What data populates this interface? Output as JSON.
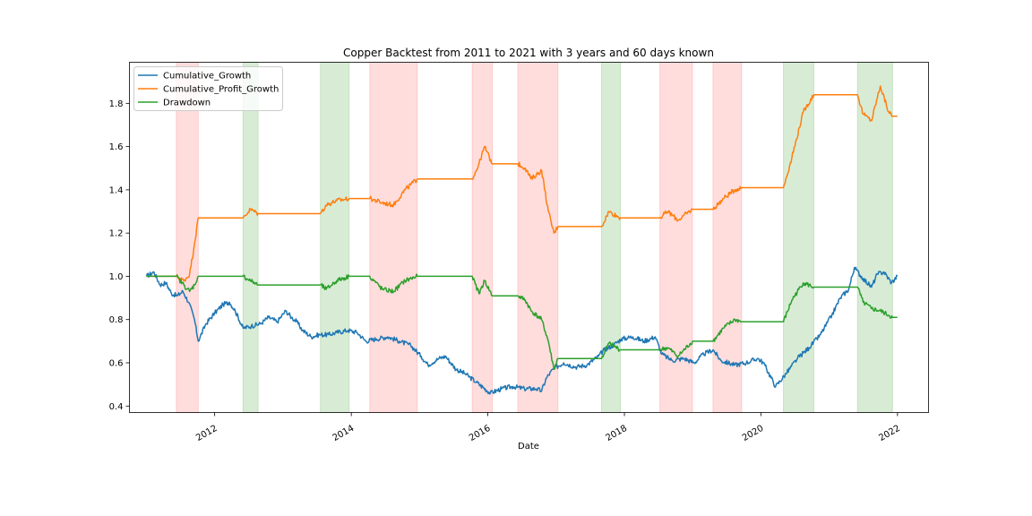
{
  "chart_data": {
    "type": "line",
    "title": "Copper Backtest from 2011 to 2021 with 3 years and 60 days known",
    "xlabel": "Date",
    "ylabel": "",
    "xlim": [
      "2010-10-02",
      "2022-06-16"
    ],
    "ylim": [
      0.37,
      1.99
    ],
    "grid": false,
    "legend_position": "top-left",
    "x_ticks": [
      "2012",
      "2014",
      "2016",
      "2018",
      "2020",
      "2022"
    ],
    "y_ticks": [
      0.4,
      0.6,
      0.8,
      1.0,
      1.2,
      1.4,
      1.6,
      1.8
    ],
    "shaded_regions": [
      {
        "start": "2011-06-10",
        "end": "2011-10-05",
        "color": "#ffb3b3"
      },
      {
        "start": "2012-06-01",
        "end": "2012-08-20",
        "color": "#a8d5a2"
      },
      {
        "start": "2013-07-20",
        "end": "2013-12-20",
        "color": "#a8d5a2"
      },
      {
        "start": "2014-04-10",
        "end": "2014-12-20",
        "color": "#ffb3b3"
      },
      {
        "start": "2015-10-10",
        "end": "2016-01-25",
        "color": "#ffb3b3"
      },
      {
        "start": "2016-06-10",
        "end": "2017-01-10",
        "color": "#ffb3b3"
      },
      {
        "start": "2017-09-01",
        "end": "2017-12-10",
        "color": "#a8d5a2"
      },
      {
        "start": "2018-07-10",
        "end": "2018-12-31",
        "color": "#ffb3b3"
      },
      {
        "start": "2019-04-20",
        "end": "2019-09-20",
        "color": "#ffb3b3"
      },
      {
        "start": "2020-05-01",
        "end": "2020-10-10",
        "color": "#a8d5a2"
      },
      {
        "start": "2021-06-01",
        "end": "2021-12-05",
        "color": "#a8d5a2"
      }
    ],
    "series": [
      {
        "name": "Cumulative_Growth",
        "color": "#1f77b4",
        "points": [
          [
            "2011-01-01",
            1.0
          ],
          [
            "2011-02-10",
            1.02
          ],
          [
            "2011-03-15",
            0.96
          ],
          [
            "2011-04-15",
            0.97
          ],
          [
            "2011-05-15",
            0.92
          ],
          [
            "2011-06-15",
            0.91
          ],
          [
            "2011-07-15",
            0.93
          ],
          [
            "2011-08-15",
            0.88
          ],
          [
            "2011-09-15",
            0.8
          ],
          [
            "2011-10-05",
            0.7
          ],
          [
            "2011-11-15",
            0.78
          ],
          [
            "2012-01-01",
            0.83
          ],
          [
            "2012-02-15",
            0.87
          ],
          [
            "2012-03-20",
            0.88
          ],
          [
            "2012-04-20",
            0.84
          ],
          [
            "2012-06-01",
            0.76
          ],
          [
            "2012-07-15",
            0.77
          ],
          [
            "2012-09-01",
            0.78
          ],
          [
            "2012-10-15",
            0.81
          ],
          [
            "2012-12-01",
            0.79
          ],
          [
            "2013-01-15",
            0.84
          ],
          [
            "2013-02-15",
            0.81
          ],
          [
            "2013-03-15",
            0.79
          ],
          [
            "2013-04-15",
            0.75
          ],
          [
            "2013-06-01",
            0.72
          ],
          [
            "2013-07-15",
            0.73
          ],
          [
            "2013-09-01",
            0.73
          ],
          [
            "2013-10-15",
            0.74
          ],
          [
            "2013-12-15",
            0.75
          ],
          [
            "2014-02-01",
            0.74
          ],
          [
            "2014-03-20",
            0.7
          ],
          [
            "2014-05-15",
            0.71
          ],
          [
            "2014-07-15",
            0.72
          ],
          [
            "2014-09-15",
            0.7
          ],
          [
            "2014-11-15",
            0.68
          ],
          [
            "2015-01-10",
            0.63
          ],
          [
            "2015-02-15",
            0.59
          ],
          [
            "2015-04-15",
            0.62
          ],
          [
            "2015-05-20",
            0.63
          ],
          [
            "2015-07-15",
            0.57
          ],
          [
            "2015-09-01",
            0.55
          ],
          [
            "2015-11-01",
            0.51
          ],
          [
            "2016-01-15",
            0.46
          ],
          [
            "2016-03-15",
            0.48
          ],
          [
            "2016-05-15",
            0.49
          ],
          [
            "2016-07-15",
            0.48
          ],
          [
            "2016-09-15",
            0.48
          ],
          [
            "2016-10-15",
            0.47
          ],
          [
            "2016-11-10",
            0.53
          ],
          [
            "2016-12-15",
            0.57
          ],
          [
            "2017-02-10",
            0.6
          ],
          [
            "2017-04-15",
            0.58
          ],
          [
            "2017-06-15",
            0.59
          ],
          [
            "2017-08-15",
            0.63
          ],
          [
            "2017-09-15",
            0.66
          ],
          [
            "2017-11-01",
            0.68
          ],
          [
            "2017-12-15",
            0.71
          ],
          [
            "2018-02-15",
            0.72
          ],
          [
            "2018-04-15",
            0.7
          ],
          [
            "2018-06-15",
            0.72
          ],
          [
            "2018-07-20",
            0.64
          ],
          [
            "2018-09-15",
            0.61
          ],
          [
            "2018-11-15",
            0.62
          ],
          [
            "2019-01-10",
            0.6
          ],
          [
            "2019-03-01",
            0.64
          ],
          [
            "2019-04-20",
            0.66
          ],
          [
            "2019-06-01",
            0.61
          ],
          [
            "2019-08-15",
            0.59
          ],
          [
            "2019-10-15",
            0.6
          ],
          [
            "2019-12-15",
            0.62
          ],
          [
            "2020-01-15",
            0.6
          ],
          [
            "2020-03-20",
            0.49
          ],
          [
            "2020-05-15",
            0.55
          ],
          [
            "2020-07-15",
            0.62
          ],
          [
            "2020-09-15",
            0.67
          ],
          [
            "2020-11-15",
            0.73
          ],
          [
            "2021-01-15",
            0.82
          ],
          [
            "2021-03-01",
            0.9
          ],
          [
            "2021-04-15",
            0.94
          ],
          [
            "2021-05-15",
            1.04
          ],
          [
            "2021-06-30",
            0.99
          ],
          [
            "2021-08-15",
            0.95
          ],
          [
            "2021-09-15",
            1.01
          ],
          [
            "2021-10-20",
            1.02
          ],
          [
            "2021-11-30",
            0.97
          ],
          [
            "2021-12-31",
            1.0
          ]
        ]
      },
      {
        "name": "Cumulative_Profit_Growth",
        "color": "#ff7f0e",
        "points": [
          [
            "2011-01-01",
            1.0
          ],
          [
            "2011-06-10",
            1.0
          ],
          [
            "2011-07-20",
            0.98
          ],
          [
            "2011-08-20",
            1.01
          ],
          [
            "2011-09-15",
            1.15
          ],
          [
            "2011-10-05",
            1.27
          ],
          [
            "2012-06-01",
            1.27
          ],
          [
            "2012-07-10",
            1.31
          ],
          [
            "2012-08-20",
            1.29
          ],
          [
            "2013-07-20",
            1.29
          ],
          [
            "2013-08-20",
            1.33
          ],
          [
            "2013-10-15",
            1.35
          ],
          [
            "2013-12-20",
            1.36
          ],
          [
            "2014-04-10",
            1.36
          ],
          [
            "2014-06-15",
            1.34
          ],
          [
            "2014-08-15",
            1.33
          ],
          [
            "2014-10-15",
            1.4
          ],
          [
            "2014-12-20",
            1.45
          ],
          [
            "2015-10-10",
            1.45
          ],
          [
            "2015-11-15",
            1.52
          ],
          [
            "2015-12-15",
            1.6
          ],
          [
            "2016-01-25",
            1.52
          ],
          [
            "2016-06-10",
            1.52
          ],
          [
            "2016-07-20",
            1.5
          ],
          [
            "2016-08-20",
            1.45
          ],
          [
            "2016-10-15",
            1.49
          ],
          [
            "2016-11-20",
            1.3
          ],
          [
            "2016-12-20",
            1.2
          ],
          [
            "2017-01-10",
            1.23
          ],
          [
            "2017-09-01",
            1.23
          ],
          [
            "2017-10-10",
            1.3
          ],
          [
            "2017-12-10",
            1.27
          ],
          [
            "2018-07-10",
            1.27
          ],
          [
            "2018-08-20",
            1.3
          ],
          [
            "2018-10-15",
            1.26
          ],
          [
            "2018-12-31",
            1.31
          ],
          [
            "2019-04-20",
            1.31
          ],
          [
            "2019-06-15",
            1.36
          ],
          [
            "2019-08-15",
            1.4
          ],
          [
            "2019-09-20",
            1.41
          ],
          [
            "2020-05-01",
            1.41
          ],
          [
            "2020-06-15",
            1.55
          ],
          [
            "2020-08-15",
            1.76
          ],
          [
            "2020-10-10",
            1.84
          ],
          [
            "2021-06-01",
            1.84
          ],
          [
            "2021-07-01",
            1.75
          ],
          [
            "2021-08-15",
            1.72
          ],
          [
            "2021-10-01",
            1.88
          ],
          [
            "2021-11-15",
            1.76
          ],
          [
            "2021-12-05",
            1.74
          ],
          [
            "2021-12-31",
            1.74
          ]
        ]
      },
      {
        "name": "Drawdown",
        "color": "#2ca02c",
        "points": [
          [
            "2011-01-01",
            1.0
          ],
          [
            "2011-06-10",
            1.0
          ],
          [
            "2011-07-20",
            0.96
          ],
          [
            "2011-08-20",
            0.93
          ],
          [
            "2011-09-15",
            0.96
          ],
          [
            "2011-10-05",
            1.0
          ],
          [
            "2012-06-01",
            1.0
          ],
          [
            "2012-07-10",
            0.98
          ],
          [
            "2012-08-20",
            0.96
          ],
          [
            "2013-07-20",
            0.96
          ],
          [
            "2013-08-20",
            0.94
          ],
          [
            "2013-10-15",
            0.98
          ],
          [
            "2013-12-20",
            1.0
          ],
          [
            "2014-04-10",
            1.0
          ],
          [
            "2014-06-15",
            0.94
          ],
          [
            "2014-08-15",
            0.93
          ],
          [
            "2014-10-15",
            0.98
          ],
          [
            "2014-12-20",
            1.0
          ],
          [
            "2015-10-10",
            1.0
          ],
          [
            "2015-11-15",
            0.92
          ],
          [
            "2015-12-15",
            0.98
          ],
          [
            "2016-01-25",
            0.91
          ],
          [
            "2016-06-10",
            0.91
          ],
          [
            "2016-07-20",
            0.89
          ],
          [
            "2016-08-20",
            0.84
          ],
          [
            "2016-10-15",
            0.8
          ],
          [
            "2016-11-20",
            0.7
          ],
          [
            "2016-12-20",
            0.57
          ],
          [
            "2017-01-10",
            0.62
          ],
          [
            "2017-09-01",
            0.62
          ],
          [
            "2017-10-10",
            0.69
          ],
          [
            "2017-12-10",
            0.66
          ],
          [
            "2018-07-10",
            0.66
          ],
          [
            "2018-08-20",
            0.67
          ],
          [
            "2018-10-15",
            0.63
          ],
          [
            "2018-12-31",
            0.7
          ],
          [
            "2019-04-20",
            0.7
          ],
          [
            "2019-06-15",
            0.76
          ],
          [
            "2019-08-15",
            0.8
          ],
          [
            "2019-09-20",
            0.79
          ],
          [
            "2020-05-01",
            0.79
          ],
          [
            "2020-06-15",
            0.89
          ],
          [
            "2020-08-15",
            0.97
          ],
          [
            "2020-10-10",
            0.95
          ],
          [
            "2021-06-01",
            0.95
          ],
          [
            "2021-07-01",
            0.88
          ],
          [
            "2021-08-15",
            0.85
          ],
          [
            "2021-10-01",
            0.84
          ],
          [
            "2021-11-15",
            0.82
          ],
          [
            "2021-12-05",
            0.81
          ],
          [
            "2021-12-31",
            0.81
          ]
        ]
      }
    ]
  }
}
